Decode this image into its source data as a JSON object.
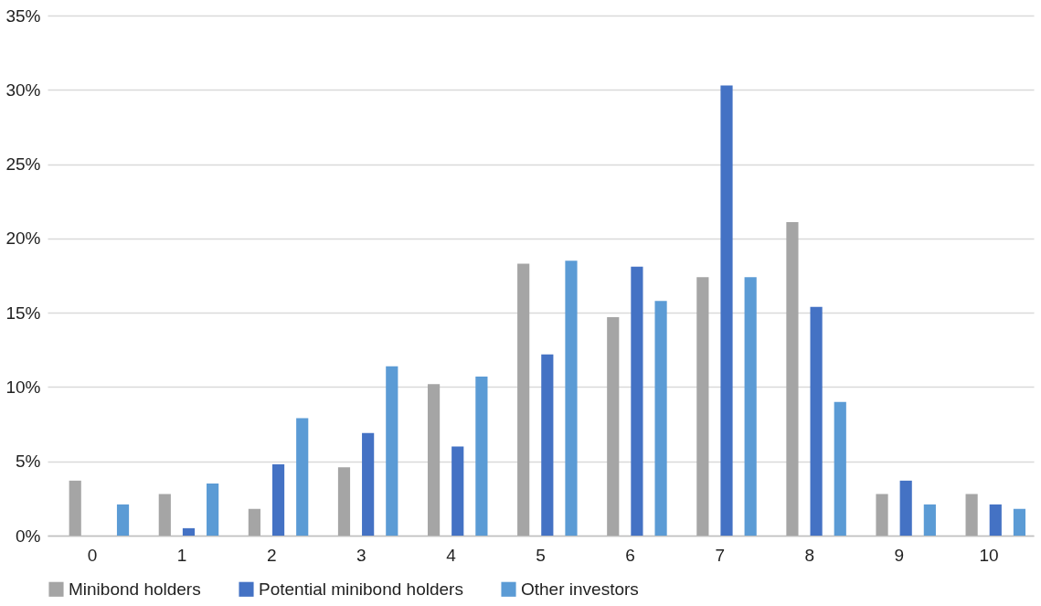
{
  "chart_data": {
    "type": "bar",
    "categories": [
      "0",
      "1",
      "2",
      "3",
      "4",
      "5",
      "6",
      "7",
      "8",
      "9",
      "10"
    ],
    "series": [
      {
        "name": "Minibond holders",
        "color": "#a5a5a5",
        "values": [
          3.7,
          2.8,
          1.8,
          4.6,
          10.2,
          18.3,
          14.7,
          17.4,
          21.1,
          2.8,
          2.8
        ]
      },
      {
        "name": "Potential minibond holders",
        "color": "#4472c4",
        "values": [
          0,
          0.5,
          4.8,
          6.9,
          6.0,
          12.2,
          18.1,
          30.3,
          15.4,
          3.7,
          2.1
        ]
      },
      {
        "name": "Other investors",
        "color": "#5b9bd5",
        "values": [
          2.1,
          3.5,
          7.9,
          11.4,
          10.7,
          18.5,
          15.8,
          17.4,
          9.0,
          2.1,
          1.8
        ]
      }
    ],
    "ylim": [
      0,
      35
    ],
    "yticks": [
      {
        "value": 0,
        "label": "0%"
      },
      {
        "value": 5,
        "label": "5%"
      },
      {
        "value": 10,
        "label": "10%"
      },
      {
        "value": 15,
        "label": "15%"
      },
      {
        "value": 20,
        "label": "20%"
      },
      {
        "value": 25,
        "label": "25%"
      },
      {
        "value": 30,
        "label": "30%"
      },
      {
        "value": 35,
        "label": "35%"
      }
    ],
    "grid": "y",
    "legend": "bottom"
  }
}
